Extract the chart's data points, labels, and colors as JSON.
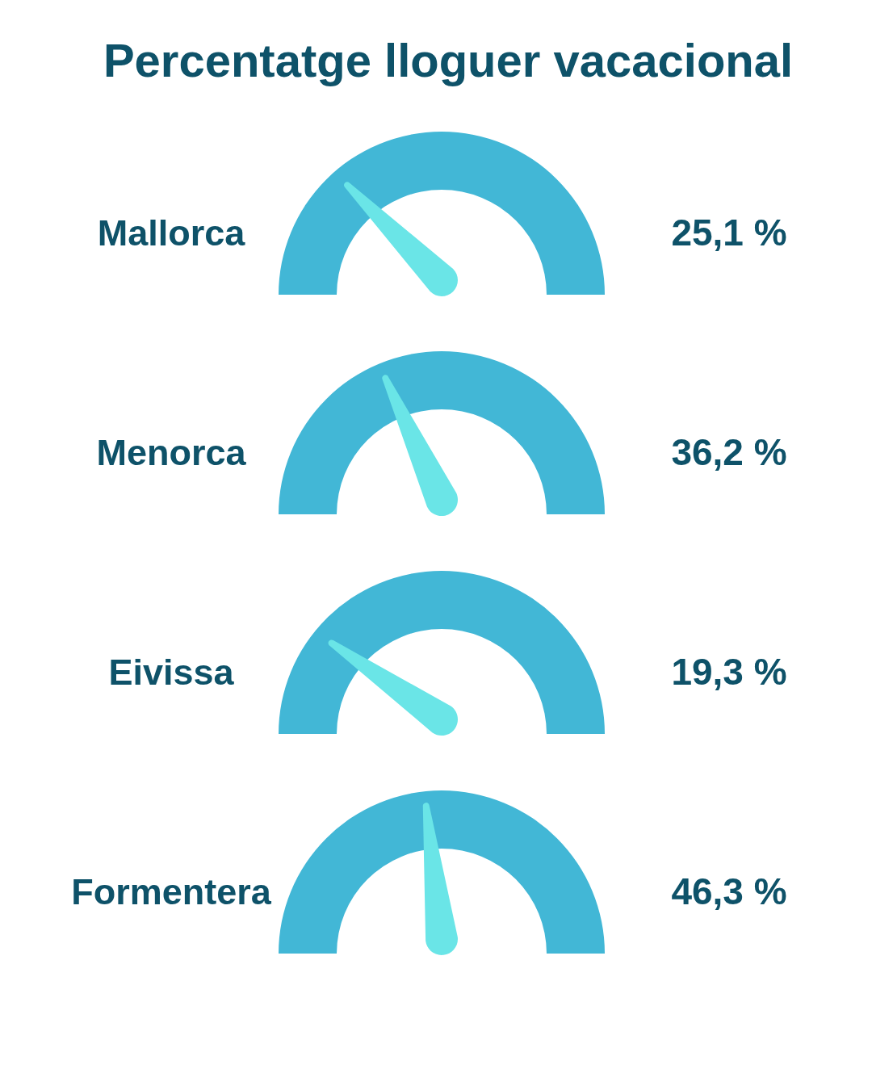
{
  "chart_data": {
    "type": "other",
    "title": "Percentatge lloguer vacacional",
    "categories": [
      "Mallorca",
      "Menorca",
      "Eivissa",
      "Formentera"
    ],
    "color": "#42b7d6",
    "series": [
      {
        "color": "#6ae5e7",
        "values": [
          25.1,
          36.2,
          19.3,
          46.3
        ],
        "value_labels": [
          "25,1 %",
          "36,2 %",
          "19,3 %",
          "46,3 %"
        ]
      }
    ]
  }
}
